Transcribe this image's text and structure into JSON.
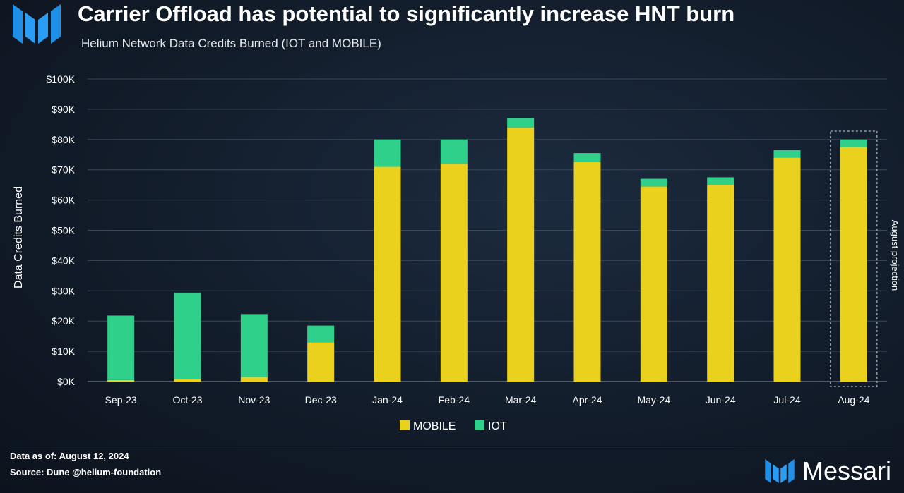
{
  "header": {
    "title": "Carrier Offload has potential to significantly increase HNT burn",
    "subtitle": "Helium Network Data Credits Burned (IOT and MOBILE)"
  },
  "footer": {
    "data_as_of": "Data as of: August 12, 2024",
    "source": "Source: Dune @helium-foundation",
    "brand": "Messari"
  },
  "colors": {
    "mobile": "#e9d11e",
    "iot": "#2fd08a",
    "accent_logo": "#2a9df4"
  },
  "icons": {
    "logo": "messari-logo-icon"
  },
  "chart_data": {
    "type": "bar",
    "stacked": true,
    "title": "Helium Network Data Credits Burned (IOT and MOBILE)",
    "ylabel": "Data Credits Burned",
    "xlabel": "",
    "ylim": [
      0,
      100000
    ],
    "yticks": [
      0,
      10000,
      20000,
      30000,
      40000,
      50000,
      60000,
      70000,
      80000,
      90000,
      100000
    ],
    "ytick_labels": [
      "$0K",
      "$10K",
      "$20K",
      "$30K",
      "$40K",
      "$50K",
      "$60K",
      "$70K",
      "$80K",
      "$90K",
      "$100K"
    ],
    "grid": true,
    "legend": "bottom-center",
    "categories": [
      "Sep-23",
      "Oct-23",
      "Nov-23",
      "Dec-23",
      "Jan-24",
      "Feb-24",
      "Mar-24",
      "Apr-24",
      "May-24",
      "Jun-24",
      "Jul-24",
      "Aug-24"
    ],
    "series": [
      {
        "name": "MOBILE",
        "values": [
          500,
          900,
          1500,
          13000,
          71000,
          72000,
          84000,
          72500,
          64500,
          65000,
          74000,
          77500
        ]
      },
      {
        "name": "IOT",
        "values": [
          21300,
          28500,
          20800,
          5500,
          9000,
          8000,
          3000,
          3000,
          2500,
          2500,
          2500,
          2500
        ]
      }
    ],
    "annotations": [
      {
        "category": "Aug-24",
        "text": "August projection"
      }
    ]
  }
}
